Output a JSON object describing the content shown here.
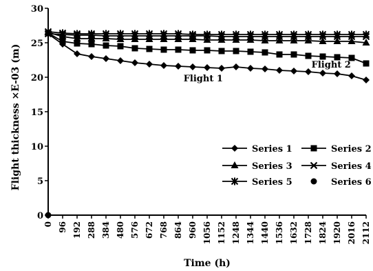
{
  "chart_data": {
    "type": "line",
    "xlabel": "Time (h)",
    "ylabel": "Flight thickness ×E-03 (m)",
    "xlim": [
      0,
      2112
    ],
    "ylim": [
      0,
      30
    ],
    "x_ticks": [
      0,
      96,
      192,
      288,
      384,
      480,
      576,
      672,
      768,
      864,
      960,
      1056,
      1152,
      1248,
      1344,
      1440,
      1536,
      1632,
      1728,
      1824,
      1920,
      2016,
      2112
    ],
    "y_ticks": [
      0,
      5,
      10,
      15,
      20,
      25,
      30
    ],
    "x_tick_labels": [
      "0",
      "96",
      "192",
      "288",
      "384",
      "480",
      "576",
      "672",
      "768",
      "864",
      "960",
      "1056",
      "1152",
      "1248",
      "1344",
      "1440",
      "1536",
      "1632",
      "1728",
      "1824",
      "1920",
      "2016",
      "2112"
    ],
    "y_tick_labels": [
      "0",
      "5",
      "10",
      "15",
      "20",
      "25",
      "30"
    ],
    "x": [
      0,
      96,
      192,
      288,
      384,
      480,
      576,
      672,
      768,
      864,
      960,
      1056,
      1152,
      1248,
      1344,
      1440,
      1536,
      1632,
      1728,
      1824,
      1920,
      2016,
      2112
    ],
    "series": [
      {
        "name": "Series 1",
        "marker": "diamond",
        "values": [
          26.3,
          24.8,
          23.4,
          23.0,
          22.7,
          22.4,
          22.1,
          21.9,
          21.7,
          21.6,
          21.5,
          21.4,
          21.3,
          21.5,
          21.3,
          21.2,
          21.0,
          20.9,
          20.8,
          20.6,
          20.5,
          20.2,
          19.6
        ]
      },
      {
        "name": "Series 2",
        "marker": "square",
        "values": [
          26.4,
          25.2,
          24.9,
          24.8,
          24.6,
          24.5,
          24.2,
          24.1,
          24.0,
          24.0,
          23.9,
          23.9,
          23.8,
          23.8,
          23.7,
          23.6,
          23.3,
          23.3,
          23.1,
          23.0,
          22.9,
          22.8,
          22.0
        ]
      },
      {
        "name": "Series 3",
        "marker": "triangle",
        "values": [
          26.5,
          25.9,
          25.6,
          25.6,
          25.6,
          25.5,
          25.5,
          25.5,
          25.5,
          25.5,
          25.5,
          25.4,
          25.4,
          25.4,
          25.4,
          25.3,
          25.3,
          25.3,
          25.3,
          25.2,
          25.2,
          25.2,
          25.0
        ]
      },
      {
        "name": "Series 4",
        "marker": "x",
        "values": [
          26.3,
          26.2,
          26.1,
          26.1,
          26.0,
          26.0,
          26.0,
          26.0,
          26.0,
          26.0,
          26.0,
          26.0,
          25.9,
          25.9,
          25.9,
          25.9,
          25.9,
          25.9,
          25.9,
          25.9,
          25.9,
          25.9,
          25.9
        ]
      },
      {
        "name": "Series 5",
        "marker": "star",
        "values": [
          26.6,
          26.4,
          26.3,
          26.3,
          26.3,
          26.3,
          26.3,
          26.3,
          26.3,
          26.3,
          26.2,
          26.2,
          26.2,
          26.2,
          26.2,
          26.2,
          26.2,
          26.2,
          26.2,
          26.2,
          26.2,
          26.2,
          26.2
        ]
      },
      {
        "name": "Series 6",
        "marker": "circle",
        "points": [
          [
            0,
            0
          ]
        ]
      }
    ],
    "annotations": [
      {
        "text": "Flight 1",
        "x": 1030,
        "y": 19.4
      },
      {
        "text": "Flight 2",
        "x": 1880,
        "y": 21.4
      }
    ],
    "legend_position": "bottom-right",
    "grid": false
  }
}
